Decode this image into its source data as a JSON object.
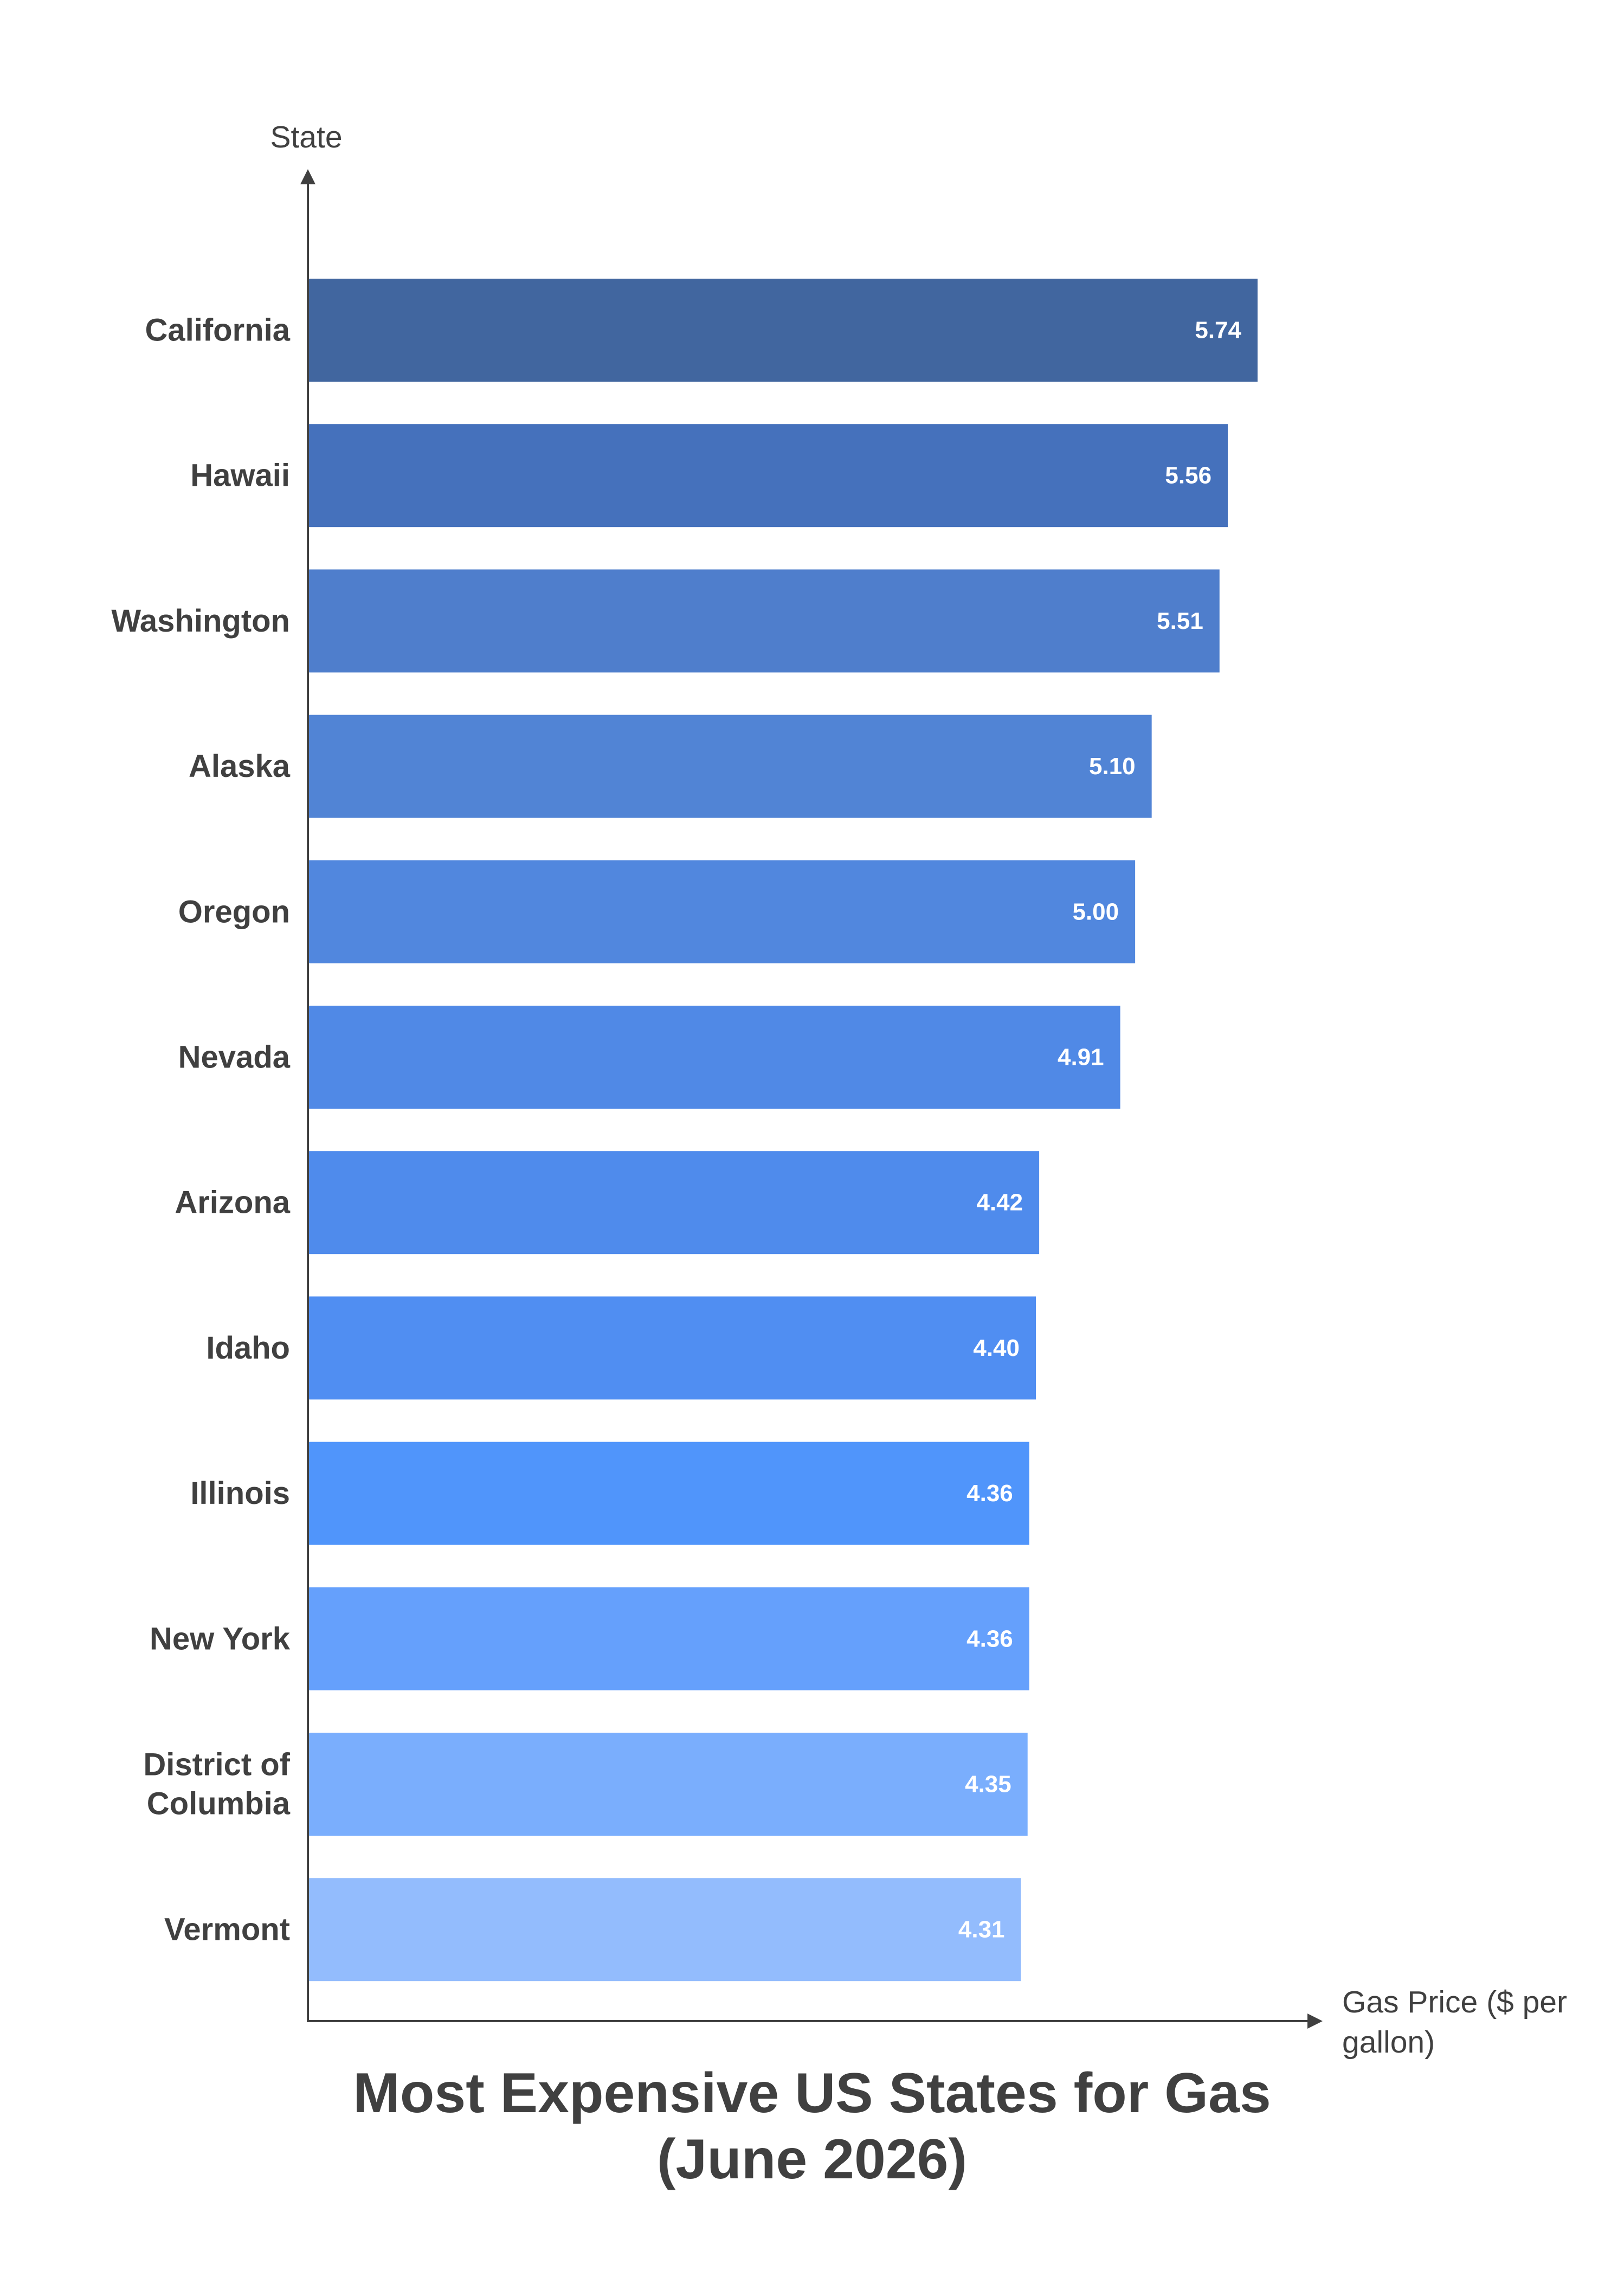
{
  "chart_data": {
    "type": "bar",
    "orientation": "horizontal",
    "title": "Most Expensive US States for Gas",
    "subtitle": "(June 2026)",
    "ylabel": "State",
    "xlabel": "Gas Price ($ per gallon)",
    "xlabel_lines": [
      "Gas Price ($ per",
      "gallon)"
    ],
    "xlim": [
      0,
      6.5
    ],
    "grid": false,
    "legend": "none",
    "categories": [
      "California",
      "Hawaii",
      "Washington",
      "Alaska",
      "Oregon",
      "Nevada",
      "Arizona",
      "Idaho",
      "Illinois",
      "New York",
      "District of Columbia",
      "Vermont"
    ],
    "category_lines": [
      [
        "California"
      ],
      [
        "Hawaii"
      ],
      [
        "Washington"
      ],
      [
        "Alaska"
      ],
      [
        "Oregon"
      ],
      [
        "Nevada"
      ],
      [
        "Arizona"
      ],
      [
        "Idaho"
      ],
      [
        "Illinois"
      ],
      [
        "New York"
      ],
      [
        "District of",
        "Columbia"
      ],
      [
        "Vermont"
      ]
    ],
    "values": [
      5.74,
      5.56,
      5.51,
      5.1,
      5.0,
      4.91,
      4.42,
      4.4,
      4.36,
      4.36,
      4.35,
      4.31
    ],
    "value_labels": [
      "5.74",
      "5.56",
      "5.51",
      "5.10",
      "5.00",
      "4.91",
      "4.42",
      "4.40",
      "4.36",
      "4.36",
      "4.35",
      "4.31"
    ],
    "colors": [
      "#41669f",
      "#4571bc",
      "#4f7ecc",
      "#5184d5",
      "#5187de",
      "#5089e6",
      "#4f8bec",
      "#508ef2",
      "#5095fb",
      "#65a0fc",
      "#7aaefd",
      "#93bcfd"
    ]
  }
}
